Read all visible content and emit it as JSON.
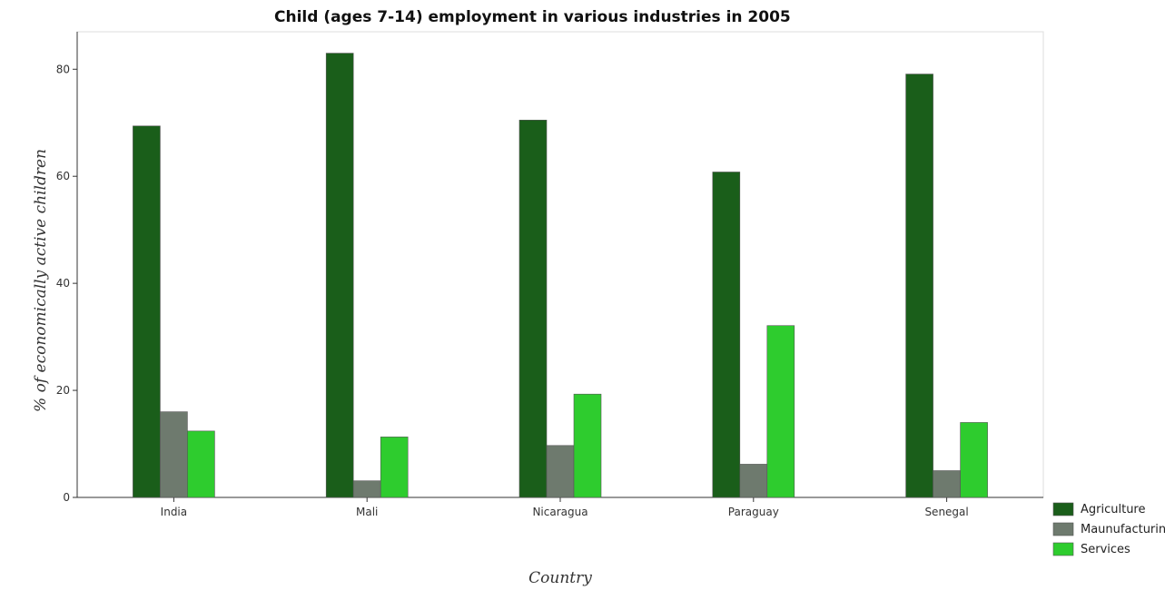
{
  "chart_data": {
    "type": "bar",
    "title": "Child (ages 7-14) employment in various industries in 2005",
    "xlabel": "Country",
    "ylabel": "% of economically active children",
    "categories": [
      "India",
      "Mali",
      "Nicaragua",
      "Paraguay",
      "Senegal"
    ],
    "series": [
      {
        "name": "Agriculture",
        "color": "#1a5e1a",
        "values": [
          69.4,
          83.0,
          70.5,
          60.8,
          79.1
        ]
      },
      {
        "name": "Maunufacturing",
        "color": "#6e7a6e",
        "values": [
          16.0,
          3.1,
          9.7,
          6.2,
          5.0
        ]
      },
      {
        "name": "Services",
        "color": "#2ecc2e",
        "values": [
          12.4,
          11.3,
          19.3,
          32.1,
          14.0
        ]
      }
    ],
    "ylim": [
      0,
      87
    ],
    "yticks": [
      0,
      20,
      40,
      60,
      80
    ],
    "legend_position": "bottom-right",
    "grid": false
  }
}
